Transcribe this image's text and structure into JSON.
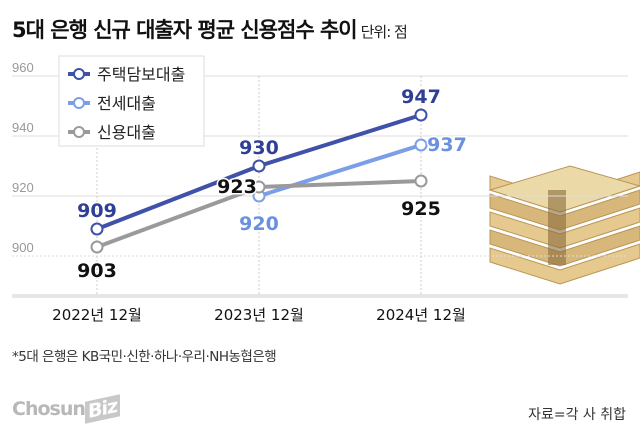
{
  "title": "5대 은행 신규 대출자 평균 신용점수 추이",
  "unit": "단위: 점",
  "note": "*5대 은행은 KB국민·신한·하나·우리·NH농협은행",
  "source": "자료=각 사 취합",
  "logo": "ChosunBiz",
  "chart_data": {
    "type": "line",
    "categories": [
      "2022년 12월",
      "2023년 12월",
      "2024년 12월"
    ],
    "ylim": [
      888,
      960
    ],
    "yticks": [
      900,
      920,
      940,
      960
    ],
    "grid": true,
    "legend_placement": "top-left",
    "series": [
      {
        "name": "주택담보대출",
        "values": [
          909,
          930,
          947
        ],
        "color": "#3f51a8",
        "label_color": "#2f3f95"
      },
      {
        "name": "전세대출",
        "values": [
          null,
          920,
          937
        ],
        "color": "#7b9fe6",
        "label_color": "#6a90e0"
      },
      {
        "name": "신용대출",
        "values": [
          903,
          923,
          925
        ],
        "color": "#9a9a9a",
        "label_color": "#111111"
      }
    ]
  }
}
